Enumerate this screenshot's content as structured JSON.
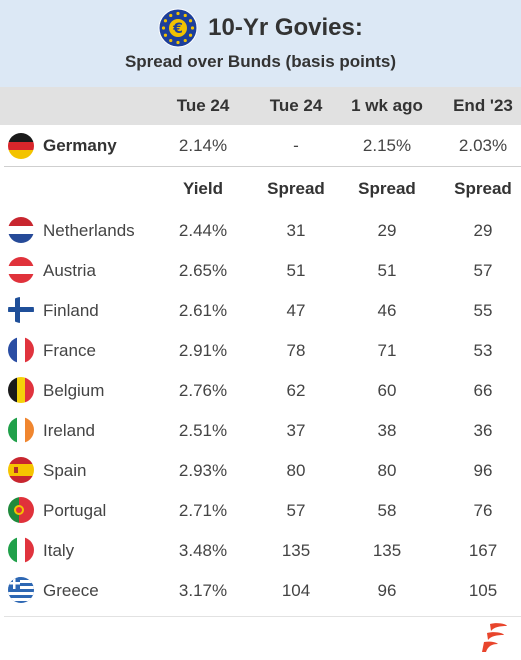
{
  "header": {
    "title": "10-Yr Govies:",
    "subtitle": "Spread over Bunds (basis points)",
    "badge_symbol": "€",
    "badge_color": "#1d3f9a",
    "star_color": "#f2c200"
  },
  "columns": [
    "Tue 24",
    "Tue 24",
    "1 wk ago",
    "End '23"
  ],
  "benchmark": {
    "country": "Germany",
    "flag": "flag-germany",
    "values": [
      "2.14%",
      "-",
      "2.15%",
      "2.03%"
    ]
  },
  "subheaders": [
    "Yield",
    "Spread",
    "Spread",
    "Spread"
  ],
  "rows": [
    {
      "country": "Netherlands",
      "flag": "flag-netherlands",
      "yield": "2.44%",
      "spread": "31",
      "week": "29",
      "end": "29"
    },
    {
      "country": "Austria",
      "flag": "flag-austria",
      "yield": "2.65%",
      "spread": "51",
      "week": "51",
      "end": "57"
    },
    {
      "country": "Finland",
      "flag": "flag-finland",
      "yield": "2.61%",
      "spread": "47",
      "week": "46",
      "end": "55"
    },
    {
      "country": "France",
      "flag": "flag-france",
      "yield": "2.91%",
      "spread": "78",
      "week": "71",
      "end": "53"
    },
    {
      "country": "Belgium",
      "flag": "flag-belgium",
      "yield": "2.76%",
      "spread": "62",
      "week": "60",
      "end": "66"
    },
    {
      "country": "Ireland",
      "flag": "flag-ireland",
      "yield": "2.51%",
      "spread": "37",
      "week": "38",
      "end": "36"
    },
    {
      "country": "Spain",
      "flag": "flag-spain",
      "yield": "2.93%",
      "spread": "80",
      "week": "80",
      "end": "96"
    },
    {
      "country": "Portugal",
      "flag": "flag-portugal",
      "yield": "2.71%",
      "spread": "57",
      "week": "58",
      "end": "76"
    },
    {
      "country": "Italy",
      "flag": "flag-italy",
      "yield": "3.48%",
      "spread": "135",
      "week": "135",
      "end": "167"
    },
    {
      "country": "Greece",
      "flag": "flag-greece",
      "yield": "3.17%",
      "spread": "104",
      "week": "96",
      "end": "105"
    }
  ],
  "logo": {
    "icon": "brand-logo-icon",
    "color": "#e8452c"
  }
}
